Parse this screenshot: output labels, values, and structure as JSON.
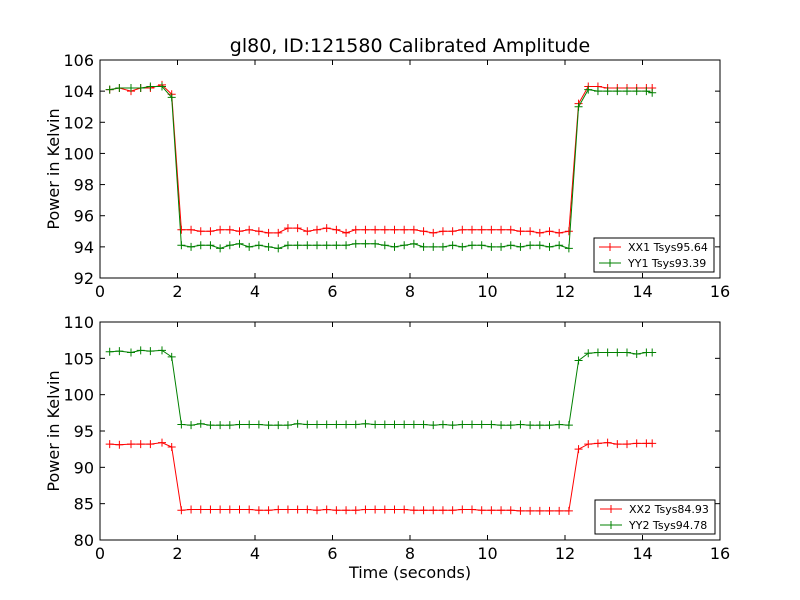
{
  "title": "gl80, ID:121580 Calibrated Amplitude",
  "chart_data": [
    {
      "type": "line",
      "title": "gl80, ID:121580 Calibrated Amplitude",
      "xlabel": "",
      "ylabel": "Power in Kelvin",
      "xlim": [
        0,
        16
      ],
      "ylim": [
        92,
        106
      ],
      "xticks": [
        0,
        2,
        4,
        6,
        8,
        10,
        12,
        14,
        16
      ],
      "yticks": [
        92,
        94,
        96,
        98,
        100,
        102,
        104,
        106
      ],
      "legend_position": "lower-right",
      "x": [
        0.25,
        0.5,
        0.8,
        1.05,
        1.3,
        1.6,
        1.85,
        2.1,
        2.35,
        2.6,
        2.85,
        3.1,
        3.35,
        3.6,
        3.85,
        4.1,
        4.35,
        4.6,
        4.85,
        5.1,
        5.35,
        5.6,
        5.85,
        6.1,
        6.35,
        6.6,
        6.85,
        7.1,
        7.35,
        7.6,
        7.85,
        8.1,
        8.35,
        8.6,
        8.85,
        9.1,
        9.35,
        9.6,
        9.85,
        10.1,
        10.35,
        10.6,
        10.85,
        11.1,
        11.35,
        11.6,
        11.85,
        12.1,
        12.35,
        12.6,
        12.85,
        13.1,
        13.35,
        13.6,
        13.85,
        14.1,
        14.25
      ],
      "series": [
        {
          "name": "XX1 Tsys95.64",
          "color": "#ff0000",
          "values": [
            104.1,
            104.2,
            104.0,
            104.2,
            104.2,
            104.4,
            103.8,
            95.1,
            95.1,
            95.0,
            95.0,
            95.1,
            95.1,
            95.0,
            95.1,
            95.0,
            94.9,
            94.9,
            95.2,
            95.2,
            95.0,
            95.1,
            95.2,
            95.1,
            94.9,
            95.1,
            95.1,
            95.1,
            95.1,
            95.1,
            95.1,
            95.1,
            95.0,
            94.9,
            95.0,
            95.0,
            95.1,
            95.1,
            95.1,
            95.1,
            95.1,
            95.1,
            95.0,
            95.0,
            94.9,
            95.0,
            94.9,
            95.0,
            103.2,
            104.3,
            104.3,
            104.2,
            104.2,
            104.2,
            104.2,
            104.2,
            104.2
          ]
        },
        {
          "name": "YY1 Tsys93.39",
          "color": "#008000",
          "values": [
            104.1,
            104.2,
            104.2,
            104.2,
            104.3,
            104.3,
            103.6,
            94.1,
            94.0,
            94.1,
            94.1,
            93.9,
            94.1,
            94.2,
            94.0,
            94.1,
            94.0,
            93.9,
            94.1,
            94.1,
            94.1,
            94.1,
            94.1,
            94.1,
            94.1,
            94.2,
            94.2,
            94.2,
            94.1,
            94.0,
            94.1,
            94.2,
            94.0,
            94.0,
            94.0,
            94.1,
            94.0,
            94.1,
            94.1,
            94.0,
            94.0,
            94.1,
            94.0,
            94.1,
            94.1,
            94.0,
            94.1,
            93.9,
            103.0,
            104.1,
            104.0,
            104.0,
            104.0,
            104.0,
            104.0,
            104.0,
            103.9
          ]
        }
      ]
    },
    {
      "type": "line",
      "title": "",
      "xlabel": "Time (seconds)",
      "ylabel": "Power in Kelvin",
      "xlim": [
        0,
        16
      ],
      "ylim": [
        80,
        110
      ],
      "xticks": [
        0,
        2,
        4,
        6,
        8,
        10,
        12,
        14,
        16
      ],
      "yticks": [
        80,
        85,
        90,
        95,
        100,
        105,
        110
      ],
      "legend_position": "lower-right",
      "x": [
        0.25,
        0.5,
        0.8,
        1.05,
        1.3,
        1.6,
        1.85,
        2.1,
        2.35,
        2.6,
        2.85,
        3.1,
        3.35,
        3.6,
        3.85,
        4.1,
        4.35,
        4.6,
        4.85,
        5.1,
        5.35,
        5.6,
        5.85,
        6.1,
        6.35,
        6.6,
        6.85,
        7.1,
        7.35,
        7.6,
        7.85,
        8.1,
        8.35,
        8.6,
        8.85,
        9.1,
        9.35,
        9.6,
        9.85,
        10.1,
        10.35,
        10.6,
        10.85,
        11.1,
        11.35,
        11.6,
        11.85,
        12.1,
        12.35,
        12.6,
        12.85,
        13.1,
        13.35,
        13.6,
        13.85,
        14.1,
        14.25
      ],
      "series": [
        {
          "name": "XX2 Tsys84.93",
          "color": "#ff0000",
          "values": [
            93.2,
            93.1,
            93.2,
            93.2,
            93.2,
            93.4,
            92.8,
            84.1,
            84.2,
            84.2,
            84.2,
            84.2,
            84.2,
            84.2,
            84.2,
            84.1,
            84.1,
            84.2,
            84.2,
            84.2,
            84.2,
            84.1,
            84.2,
            84.1,
            84.1,
            84.1,
            84.2,
            84.2,
            84.2,
            84.2,
            84.2,
            84.1,
            84.1,
            84.1,
            84.1,
            84.1,
            84.2,
            84.2,
            84.1,
            84.1,
            84.1,
            84.1,
            84.0,
            84.0,
            84.0,
            84.0,
            84.0,
            84.0,
            92.5,
            93.2,
            93.3,
            93.4,
            93.2,
            93.2,
            93.3,
            93.3,
            93.3
          ]
        },
        {
          "name": "YY2 Tsys94.78",
          "color": "#008000",
          "values": [
            105.9,
            106.0,
            105.8,
            106.1,
            106.0,
            106.1,
            105.2,
            95.9,
            95.8,
            96.0,
            95.8,
            95.8,
            95.8,
            95.9,
            95.9,
            95.9,
            95.8,
            95.8,
            95.8,
            96.0,
            95.9,
            95.9,
            95.9,
            95.9,
            95.9,
            95.9,
            96.0,
            95.9,
            95.9,
            95.9,
            95.9,
            95.9,
            95.9,
            95.8,
            95.9,
            95.8,
            95.9,
            95.9,
            95.9,
            95.9,
            95.8,
            95.8,
            95.9,
            95.8,
            95.8,
            95.8,
            95.9,
            95.8,
            104.7,
            105.7,
            105.8,
            105.8,
            105.8,
            105.8,
            105.6,
            105.8,
            105.8
          ]
        }
      ]
    }
  ]
}
